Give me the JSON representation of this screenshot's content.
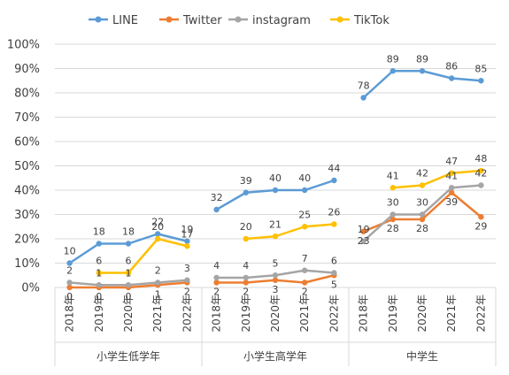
{
  "chart_data": {
    "type": "line",
    "ylim": [
      0,
      100
    ],
    "y_ticks": [
      "0%",
      "10%",
      "20%",
      "30%",
      "40%",
      "50%",
      "60%",
      "70%",
      "80%",
      "90%",
      "100%"
    ],
    "grid": true,
    "legend_position": "top",
    "groups": [
      {
        "name": "小学生低学年",
        "years": [
          "2018年",
          "2019年",
          "2020年",
          "2021年",
          "2022年"
        ]
      },
      {
        "name": "小学生高学年",
        "years": [
          "2018年",
          "2019年",
          "2020年",
          "2021年",
          "2022年"
        ]
      },
      {
        "name": "中学生",
        "years": [
          "2018年",
          "2019年",
          "2020年",
          "2021年",
          "2022年"
        ]
      }
    ],
    "series": [
      {
        "name": "LINE",
        "color": "#5B9BD5",
        "values": [
          [
            10,
            18,
            18,
            22,
            19
          ],
          [
            32,
            39,
            40,
            40,
            44
          ],
          [
            78,
            89,
            89,
            86,
            85
          ]
        ]
      },
      {
        "name": "Twitter",
        "color": "#ED7D31",
        "values": [
          [
            0,
            0,
            0,
            1,
            2
          ],
          [
            2,
            2,
            3,
            2,
            5
          ],
          [
            23,
            28,
            28,
            39,
            29
          ]
        ]
      },
      {
        "name": "instagram",
        "color": "#A5A5A5",
        "values": [
          [
            2,
            1,
            1,
            2,
            3
          ],
          [
            4,
            4,
            5,
            7,
            6
          ],
          [
            19,
            30,
            30,
            41,
            42
          ]
        ]
      },
      {
        "name": "TikTok",
        "color": "#FFC000",
        "values": [
          [
            null,
            6,
            6,
            20,
            17
          ],
          [
            null,
            20,
            21,
            25,
            26
          ],
          [
            null,
            41,
            42,
            47,
            48
          ]
        ]
      }
    ]
  }
}
